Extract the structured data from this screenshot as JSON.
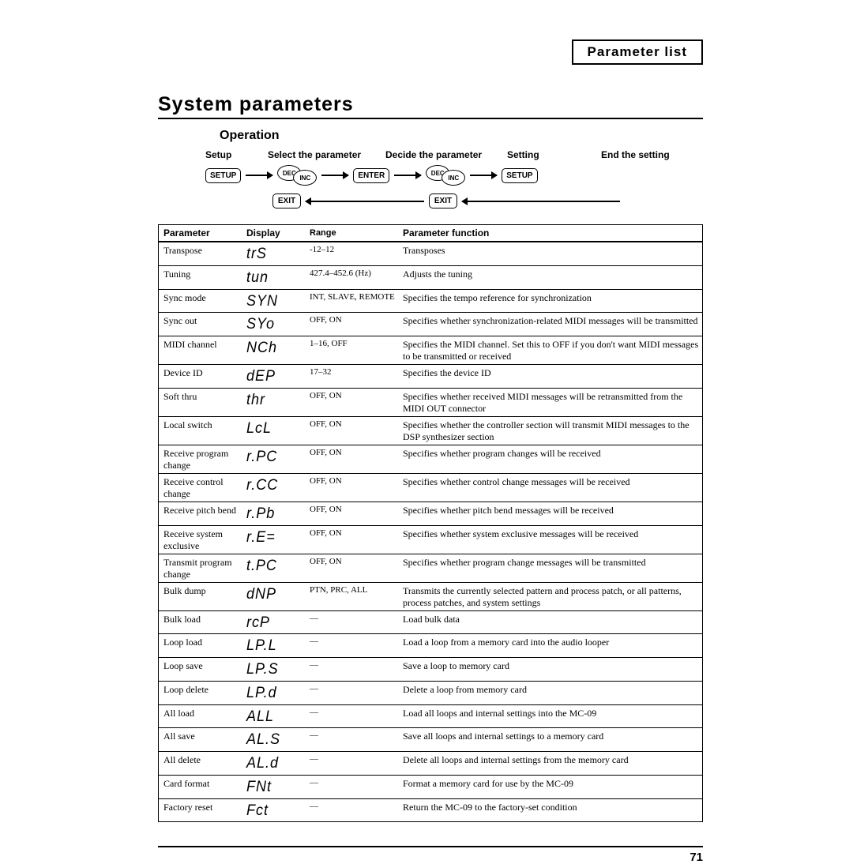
{
  "header": {
    "label": "Parameter list"
  },
  "section_title": "System parameters",
  "operation": {
    "heading": "Operation",
    "labels": {
      "setup": "Setup",
      "select": "Select the parameter",
      "decide": "Decide the parameter",
      "setting": "Setting",
      "end": "End the setting"
    },
    "buttons": {
      "setup": "SETUP",
      "enter": "ENTER",
      "exit": "EXIT",
      "dec": "DEC",
      "inc": "INC"
    }
  },
  "table": {
    "columns": [
      "Parameter",
      "Display",
      "Range",
      "Parameter function"
    ],
    "rows": [
      {
        "param": "Transpose",
        "disp": "trS",
        "range": "-12–12",
        "func": "Transposes"
      },
      {
        "param": "Tuning",
        "disp": "tun",
        "range": "427.4–452.6 (Hz)",
        "func": "Adjusts the tuning"
      },
      {
        "param": "Sync mode",
        "disp": "SYN",
        "range": "INT, SLAVE, REMOTE",
        "func": "Specifies the tempo reference for synchronization"
      },
      {
        "param": "Sync out",
        "disp": "SYo",
        "range": "OFF, ON",
        "func": "Specifies whether synchronization-related MIDI messages will be transmitted"
      },
      {
        "param": "MIDI channel",
        "disp": "NCh",
        "range": "1–16, OFF",
        "func": "Specifies the MIDI channel. Set this to OFF if you don't want MIDI messages to be transmitted or received"
      },
      {
        "param": "Device ID",
        "disp": "dEP",
        "range": "17–32",
        "func": "Specifies the device ID"
      },
      {
        "param": "Soft thru",
        "disp": "thr",
        "range": "OFF, ON",
        "func": "Specifies whether received MIDI messages will be retransmitted from the MIDI OUT connector"
      },
      {
        "param": "Local switch",
        "disp": "LcL",
        "range": "OFF, ON",
        "func": "Specifies whether the controller section will transmit MIDI messages to the DSP synthesizer section"
      },
      {
        "param": "Receive program change",
        "disp": "r.PC",
        "range": "OFF, ON",
        "func": "Specifies whether program changes will be received"
      },
      {
        "param": "Receive control change",
        "disp": "r.CC",
        "range": "OFF, ON",
        "func": "Specifies whether control change messages will be received"
      },
      {
        "param": "Receive pitch bend",
        "disp": "r.Pb",
        "range": "OFF, ON",
        "func": "Specifies whether pitch bend messages will be received"
      },
      {
        "param": "Receive system exclusive",
        "disp": "r.E=",
        "range": "OFF, ON",
        "func": "Specifies whether system exclusive messages will be received"
      },
      {
        "param": "Transmit program change",
        "disp": "t.PC",
        "range": "OFF, ON",
        "func": "Specifies whether program change messages will be transmitted"
      },
      {
        "param": "Bulk dump",
        "disp": "dNP",
        "range": "PTN, PRC, ALL",
        "func": "Transmits the currently selected pattern and process patch, or all patterns, process patches, and system settings"
      },
      {
        "param": "Bulk load",
        "disp": "rcP",
        "range": "—",
        "func": "Load bulk data"
      },
      {
        "param": "Loop load",
        "disp": "LP.L",
        "range": "—",
        "func": "Load a loop from a memory card into the audio looper"
      },
      {
        "param": "Loop save",
        "disp": "LP.S",
        "range": "—",
        "func": "Save a loop to memory card"
      },
      {
        "param": "Loop delete",
        "disp": "LP.d",
        "range": "—",
        "func": "Delete a loop from memory card"
      },
      {
        "param": "All load",
        "disp": "ALL",
        "range": "—",
        "func": "Load all loops and internal settings into the MC-09"
      },
      {
        "param": "All save",
        "disp": "AL.S",
        "range": "—",
        "func": "Save all loops and internal settings to a memory card"
      },
      {
        "param": "All delete",
        "disp": "AL.d",
        "range": "—",
        "func": "Delete all loops and internal settings from the memory card"
      },
      {
        "param": "Card format",
        "disp": "FNt",
        "range": "—",
        "func": "Format a memory card for use by the MC-09"
      },
      {
        "param": "Factory reset",
        "disp": "Fct",
        "range": "—",
        "func": "Return the MC-09 to the factory-set condition"
      }
    ]
  },
  "page_number": "71"
}
